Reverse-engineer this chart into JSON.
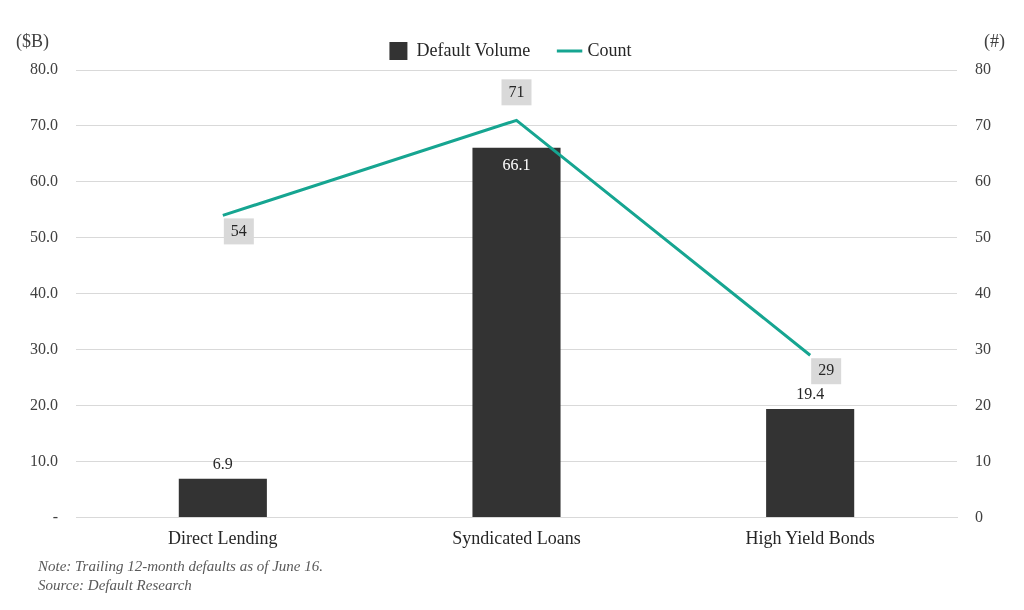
{
  "chart_data": {
    "type": "bar",
    "ylabel": "($B)",
    "y2label": "(#)",
    "categories": [
      "Direct Lending",
      "Syndicated Loans",
      "High Yield Bonds"
    ],
    "series": [
      {
        "name": "Default Volume",
        "color": "#333333",
        "values": [
          6.9,
          66.1,
          19.4
        ]
      },
      {
        "name": "Count",
        "type": "line",
        "axis": "y2",
        "color": "#16a591",
        "values": [
          54,
          71,
          29
        ]
      }
    ],
    "ylim": [
      0,
      80
    ],
    "yticks": [
      {
        "value": 0,
        "label": "-"
      },
      {
        "value": 10,
        "label": "10.0"
      },
      {
        "value": 20,
        "label": "20.0"
      },
      {
        "value": 30,
        "label": "30.0"
      },
      {
        "value": 40,
        "label": "40.0"
      },
      {
        "value": 50,
        "label": "50.0"
      },
      {
        "value": 60,
        "label": "60.0"
      },
      {
        "value": 70,
        "label": "70.0"
      },
      {
        "value": 80,
        "label": "80.0"
      }
    ],
    "y2lim": [
      0,
      80
    ],
    "y2ticks": [
      0,
      10,
      20,
      30,
      40,
      50,
      60,
      70,
      80
    ],
    "grid": "y",
    "legend": "top",
    "data_labels": true,
    "marker": "none",
    "annotations": [
      "Note: Trailing 12-month defaults as of June 16.",
      "Source: Default Research"
    ]
  }
}
